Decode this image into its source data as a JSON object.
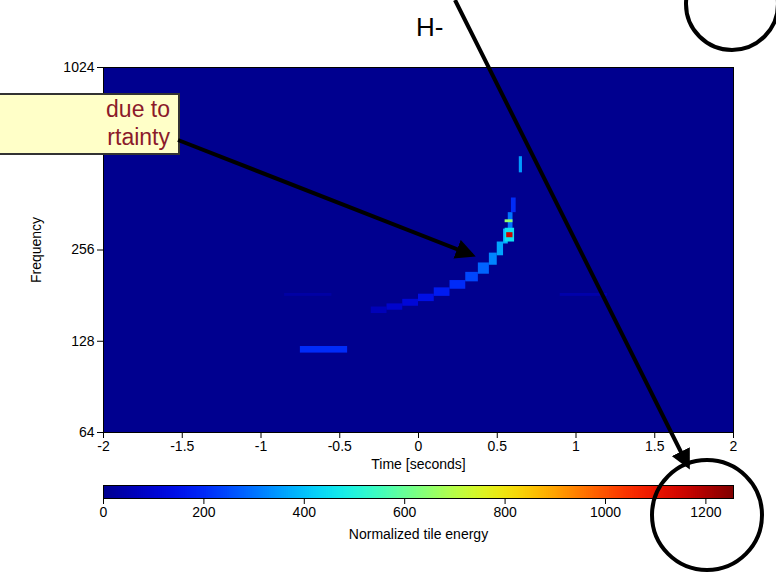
{
  "chart_data": {
    "type": "heatmap",
    "xlabel": "Time [seconds]",
    "ylabel": "Frequency",
    "xlim": [
      -2,
      2
    ],
    "xticks": [
      -2,
      -1.5,
      -1,
      -0.5,
      0,
      0.5,
      1,
      1.5,
      2
    ],
    "ylim": [
      64,
      1024
    ],
    "yticks": [
      64,
      128,
      256,
      1024
    ],
    "log": "y",
    "grid": false,
    "annotations": [
      {
        "text": "H-"
      },
      {
        "lines": [
          "due to",
          "rtainty"
        ]
      }
    ],
    "colorbar": {
      "label": "Normalized tile energy",
      "range": [
        0,
        1255
      ],
      "ticks": [
        0,
        200,
        400,
        600,
        800,
        1000,
        1200
      ]
    },
    "cells": [
      {
        "time_start": -2,
        "time_end": 2,
        "frequency_start": 64,
        "frequency_end": 1024,
        "energy": 0
      },
      {
        "time_start": -0.85,
        "time_end": -0.55,
        "frequency_start": 180,
        "frequency_end": 184,
        "energy": 30
      },
      {
        "time_start": 0.9,
        "time_end": 1.2,
        "frequency_start": 180,
        "frequency_end": 184,
        "energy": 40
      },
      {
        "time_start": -0.75,
        "time_end": -0.45,
        "frequency_start": 117,
        "frequency_end": 123,
        "energy": 200
      },
      {
        "time_start": -0.3,
        "time_end": -0.2,
        "frequency_start": 158,
        "frequency_end": 166,
        "energy": 60
      },
      {
        "time_start": -0.2,
        "time_end": -0.1,
        "frequency_start": 162,
        "frequency_end": 170,
        "energy": 90
      },
      {
        "time_start": -0.1,
        "time_end": 0,
        "frequency_start": 167,
        "frequency_end": 176,
        "energy": 110
      },
      {
        "time_start": 0,
        "time_end": 0.1,
        "frequency_start": 173,
        "frequency_end": 183,
        "energy": 140
      },
      {
        "time_start": 0.1,
        "time_end": 0.2,
        "frequency_start": 180,
        "frequency_end": 192,
        "energy": 170
      },
      {
        "time_start": 0.2,
        "time_end": 0.3,
        "frequency_start": 190,
        "frequency_end": 203,
        "energy": 200
      },
      {
        "time_start": 0.3,
        "time_end": 0.38,
        "frequency_start": 201,
        "frequency_end": 216,
        "energy": 240
      },
      {
        "time_start": 0.38,
        "time_end": 0.45,
        "frequency_start": 213,
        "frequency_end": 232,
        "energy": 280
      },
      {
        "time_start": 0.45,
        "time_end": 0.5,
        "frequency_start": 228,
        "frequency_end": 250,
        "energy": 320
      },
      {
        "time_start": 0.5,
        "time_end": 0.54,
        "frequency_start": 245,
        "frequency_end": 272,
        "energy": 360
      },
      {
        "time_start": 0.54,
        "time_end": 0.57,
        "frequency_start": 268,
        "frequency_end": 300,
        "energy": 380
      },
      {
        "time_start": 0.57,
        "time_end": 0.6,
        "frequency_start": 300,
        "frequency_end": 340,
        "energy": 300
      },
      {
        "time_start": 0.59,
        "time_end": 0.62,
        "frequency_start": 340,
        "frequency_end": 380,
        "energy": 200
      },
      {
        "time_start": 0.55,
        "time_end": 0.61,
        "frequency_start": 272,
        "frequency_end": 302,
        "energy": 450
      },
      {
        "time_start": 0.56,
        "time_end": 0.6,
        "frequency_start": 281,
        "frequency_end": 292,
        "energy": 1150
      },
      {
        "time_start": 0.55,
        "time_end": 0.6,
        "frequency_start": 315,
        "frequency_end": 322,
        "energy": 650
      },
      {
        "time_start": 0.64,
        "time_end": 0.66,
        "frequency_start": 460,
        "frequency_end": 520,
        "energy": 350
      }
    ]
  }
}
